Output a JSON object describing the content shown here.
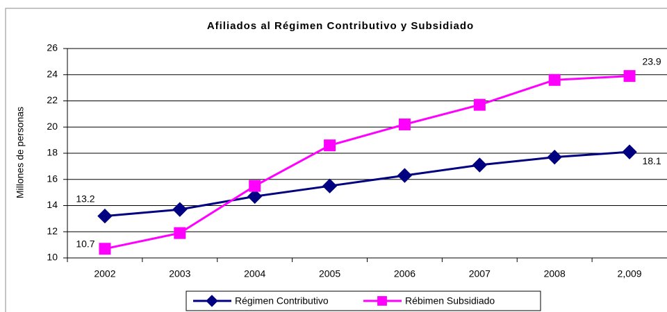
{
  "chart_data": {
    "type": "line",
    "title": "Afiliados al Régimen Contributivo y Subsidiado",
    "y_label": "Millones de personas",
    "categories": [
      "2002",
      "2003",
      "2004",
      "2005",
      "2006",
      "2007",
      "2008",
      "2,009"
    ],
    "series": [
      {
        "name": "Régimen Contributivo",
        "color": "#000080",
        "marker": "diamond",
        "values": [
          13.2,
          13.7,
          14.7,
          15.5,
          16.3,
          17.1,
          17.7,
          18.1
        ]
      },
      {
        "name": "Rébimen Subsidiado",
        "color": "#ff00ff",
        "marker": "square",
        "values": [
          10.7,
          11.9,
          15.5,
          18.6,
          20.2,
          21.7,
          23.6,
          23.9
        ]
      }
    ],
    "data_labels": "ends",
    "ylim": [
      10,
      26
    ],
    "yticks": [
      10,
      12,
      14,
      16,
      18,
      20,
      22,
      24,
      26
    ],
    "grid": true,
    "legend": "bottom"
  }
}
